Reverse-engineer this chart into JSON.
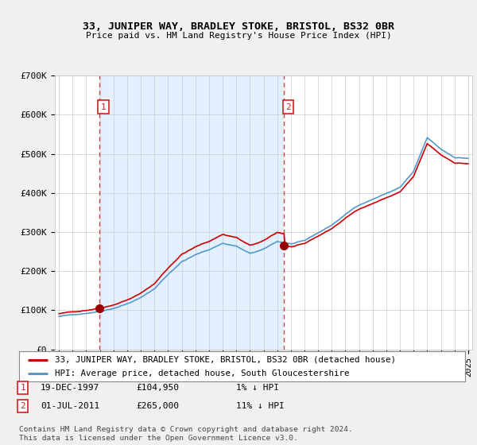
{
  "title1": "33, JUNIPER WAY, BRADLEY STOKE, BRISTOL, BS32 0BR",
  "title2": "Price paid vs. HM Land Registry's House Price Index (HPI)",
  "legend_line1": "33, JUNIPER WAY, BRADLEY STOKE, BRISTOL, BS32 0BR (detached house)",
  "legend_line2": "HPI: Average price, detached house, South Gloucestershire",
  "footnote": "Contains HM Land Registry data © Crown copyright and database right 2024.\nThis data is licensed under the Open Government Licence v3.0.",
  "sale1_date": "19-DEC-1997",
  "sale1_price": "£104,950",
  "sale1_hpi": "1% ↓ HPI",
  "sale2_date": "01-JUL-2011",
  "sale2_price": "£265,000",
  "sale2_hpi": "11% ↓ HPI",
  "sale1_x": 1997.96,
  "sale1_y": 104950,
  "sale2_x": 2011.5,
  "sale2_y": 265000,
  "vline1_x": 1997.96,
  "vline2_x": 2011.5,
  "price_color": "#cc0000",
  "hpi_color": "#5599cc",
  "vline_color": "#dd4444",
  "dot_color": "#990000",
  "shade_color": "#ddeeff",
  "background_color": "#f0f0f0",
  "plot_bg_color": "#ffffff",
  "label_box_color": "#cc2222",
  "ylim": [
    0,
    700000
  ],
  "xlim_start": 1994.7,
  "xlim_end": 2025.3
}
